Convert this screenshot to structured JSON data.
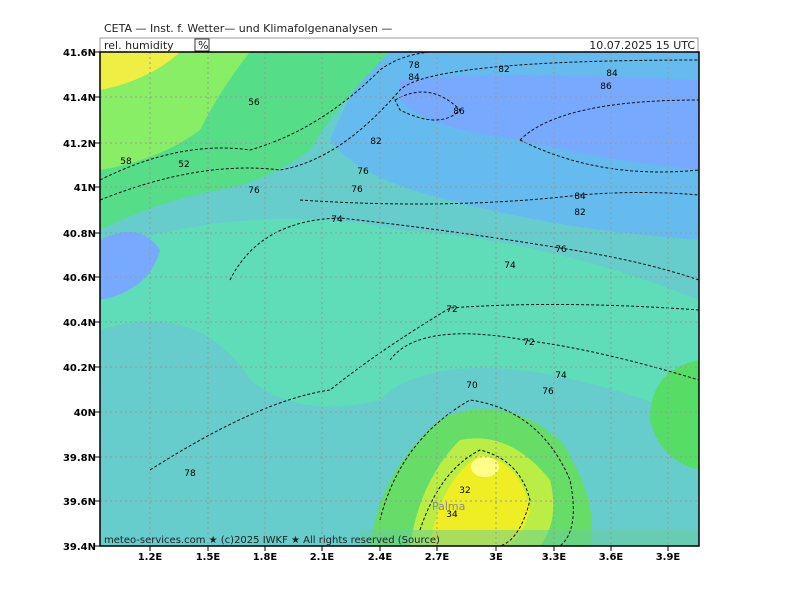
{
  "header": {
    "title": "CETA — Inst. f. Wetter— und Klimafolgenanalysen —",
    "field": "rel. humidity",
    "unit": "%",
    "datetime": "10.07.2025  15 UTC"
  },
  "map": {
    "x_ticks": [
      "1.2E",
      "1.5E",
      "1.8E",
      "2.1E",
      "2.4E",
      "2.7E",
      "3E",
      "3.3E",
      "3.6E",
      "3.9E"
    ],
    "y_ticks": [
      "41.6N",
      "41.4N",
      "41.2N",
      "41N",
      "40.8N",
      "40.6N",
      "40.4N",
      "40.2N",
      "40N",
      "39.8N",
      "39.6N",
      "39.4N"
    ],
    "contour_labels": [
      "82",
      "84",
      "86",
      "86",
      "82",
      "78",
      "84",
      "56",
      "76",
      "76",
      "76",
      "74",
      "84",
      "82",
      "76",
      "74",
      "72",
      "72",
      "74",
      "76",
      "70",
      "32",
      "34",
      "78",
      "52",
      "58"
    ],
    "place_label": "Palma"
  },
  "footer": "meteo-services.com ★ (c)2025 IWKF ★ All rights reserved (Source)"
}
